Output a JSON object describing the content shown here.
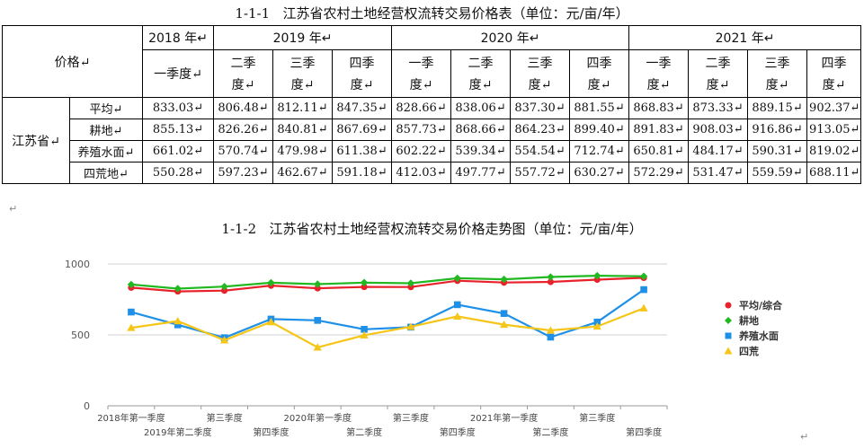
{
  "table_title": "1-1-1   江苏省农村土地经营权流转交易价格表（单位：元/亩/年）",
  "chart_title": "1-1-2   江苏省农村土地经营权流转交易价格走势图（单位：元/亩/年）",
  "return_mark": "↵",
  "table": {
    "corner_label": "价格↵",
    "region": "江苏省↵",
    "years": [
      {
        "label": "2018 年↵",
        "span": 1
      },
      {
        "label": "2019 年↵",
        "span": 3
      },
      {
        "label": "2020 年↵",
        "span": 4
      },
      {
        "label": "2021 年↵",
        "span": 4
      }
    ],
    "quarters": [
      {
        "top": "一季度↵",
        "bottom": ""
      },
      {
        "top": "二季",
        "bottom": "度↵"
      },
      {
        "top": "三季",
        "bottom": "度↵"
      },
      {
        "top": "四季",
        "bottom": "度↵"
      },
      {
        "top": "一季",
        "bottom": "度↵"
      },
      {
        "top": "二季",
        "bottom": "度↵"
      },
      {
        "top": "三季",
        "bottom": "度↵"
      },
      {
        "top": "四季",
        "bottom": "度↵"
      },
      {
        "top": "一季",
        "bottom": "度↵"
      },
      {
        "top": "二季",
        "bottom": "度↵"
      },
      {
        "top": "三季",
        "bottom": "度↵"
      },
      {
        "top": "四季",
        "bottom": "度↵"
      }
    ],
    "rows": [
      {
        "name": "平均↵",
        "values": [
          "833.03↵",
          "806.48↵",
          "812.11↵",
          "847.35↵",
          "828.66↵",
          "838.06↵",
          "837.30↵",
          "881.55↵",
          "868.83↵",
          "873.33↵",
          "889.15↵",
          "902.37↵"
        ]
      },
      {
        "name": "耕地↵",
        "values": [
          "855.13↵",
          "826.26↵",
          "840.81↵",
          "867.69↵",
          "857.73↵",
          "868.66↵",
          "864.23↵",
          "899.40↵",
          "891.83↵",
          "908.03↵",
          "916.86↵",
          "913.05↵"
        ]
      },
      {
        "name": "养殖水面↵",
        "values": [
          "661.02↵",
          "570.74↵",
          "479.98↵",
          "611.38↵",
          "602.22↵",
          "539.34↵",
          "554.54↵",
          "712.74↵",
          "650.81↵",
          "484.17↵",
          "590.31↵",
          "819.02↵"
        ]
      },
      {
        "name": "四荒地↵",
        "values": [
          "550.28↵",
          "597.23↵",
          "462.67↵",
          "591.18↵",
          "412.03↵",
          "497.77↵",
          "557.72↵",
          "630.27↵",
          "572.29↵",
          "531.47↵",
          "559.59↵",
          "688.11↵"
        ]
      }
    ]
  },
  "chart_data": {
    "type": "line",
    "title": "1-1-2   江苏省农村土地经营权流转交易价格走势图（单位：元/亩/年）",
    "x": [
      "2018年第一季度",
      "2019年第二季度",
      "第三季度",
      "第四季度",
      "2020年第一季度",
      "第二季度",
      "第三季度",
      "第四季度",
      "2021年第一季度",
      "第二季度",
      "第三季度",
      "第四季度"
    ],
    "ylim": [
      0,
      1000
    ],
    "yticks": [
      0,
      500,
      1000
    ],
    "grid": true,
    "legend_position": "right",
    "series": [
      {
        "name": "平均/综合",
        "color": "#e8222a",
        "marker": "circle",
        "values": [
          833.03,
          806.48,
          812.11,
          847.35,
          828.66,
          838.06,
          837.3,
          881.55,
          868.83,
          873.33,
          889.15,
          902.37
        ]
      },
      {
        "name": "耕地",
        "color": "#22b822",
        "marker": "diamond",
        "values": [
          855.13,
          826.26,
          840.81,
          867.69,
          857.73,
          868.66,
          864.23,
          899.4,
          891.83,
          908.03,
          916.86,
          913.05
        ]
      },
      {
        "name": "养殖水面",
        "color": "#1e90e8",
        "marker": "square",
        "values": [
          661.02,
          570.74,
          479.98,
          611.38,
          602.22,
          539.34,
          554.54,
          712.74,
          650.81,
          484.17,
          590.31,
          819.02
        ]
      },
      {
        "name": "四荒",
        "color": "#f5c518",
        "marker": "triangle",
        "values": [
          550.28,
          597.23,
          462.67,
          591.18,
          412.03,
          497.77,
          557.72,
          630.27,
          572.29,
          531.47,
          559.59,
          688.11
        ]
      }
    ]
  }
}
